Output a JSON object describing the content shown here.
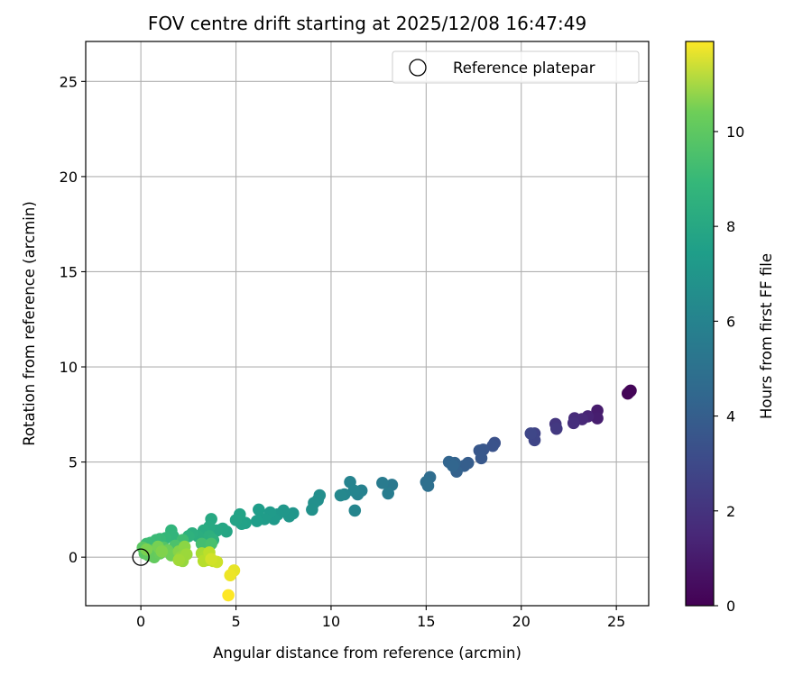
{
  "chart_data": {
    "type": "scatter",
    "title": "FOV centre drift starting at 2025/12/08 16:47:49",
    "xlabel": "Angular distance from reference (arcmin)",
    "ylabel": "Rotation from reference (arcmin)",
    "xlim": [
      -2.9,
      26.7
    ],
    "ylim": [
      -2.55,
      27.1
    ],
    "xticks": [
      0,
      5,
      10,
      15,
      20,
      25
    ],
    "yticks": [
      0,
      5,
      10,
      15,
      20,
      25
    ],
    "grid": true,
    "legend": {
      "placement": "top-right",
      "entries": [
        "Reference platepar"
      ]
    },
    "colorbar": {
      "label": "Hours from first FF file",
      "colormap": "viridis",
      "range": [
        0,
        11.9
      ],
      "ticks": [
        0,
        2,
        4,
        6,
        8,
        10
      ]
    },
    "reference_point": {
      "x": 0,
      "y": 0,
      "label": "Reference platepar"
    },
    "series": [
      {
        "points": [
          {
            "x": 25.7,
            "y": 8.7,
            "t": 0.0
          },
          {
            "x": 25.6,
            "y": 8.6,
            "t": 0.1
          },
          {
            "x": 25.75,
            "y": 8.75,
            "t": 0.15
          },
          {
            "x": 24.0,
            "y": 7.7,
            "t": 0.9
          },
          {
            "x": 24.0,
            "y": 7.3,
            "t": 1.0
          },
          {
            "x": 23.5,
            "y": 7.4,
            "t": 1.2
          },
          {
            "x": 23.2,
            "y": 7.25,
            "t": 1.35
          },
          {
            "x": 22.8,
            "y": 7.3,
            "t": 1.5
          },
          {
            "x": 22.75,
            "y": 7.05,
            "t": 1.6
          },
          {
            "x": 21.8,
            "y": 7.0,
            "t": 1.9
          },
          {
            "x": 21.85,
            "y": 6.75,
            "t": 2.0
          },
          {
            "x": 20.7,
            "y": 6.5,
            "t": 2.4
          },
          {
            "x": 20.7,
            "y": 6.15,
            "t": 2.5
          },
          {
            "x": 20.5,
            "y": 6.5,
            "t": 2.55
          },
          {
            "x": 18.6,
            "y": 6.0,
            "t": 3.0
          },
          {
            "x": 18.5,
            "y": 5.85,
            "t": 3.05
          },
          {
            "x": 18.0,
            "y": 5.65,
            "t": 3.2
          },
          {
            "x": 17.8,
            "y": 5.6,
            "t": 3.25
          },
          {
            "x": 17.9,
            "y": 5.2,
            "t": 3.3
          },
          {
            "x": 17.2,
            "y": 4.95,
            "t": 3.5
          },
          {
            "x": 17.0,
            "y": 4.8,
            "t": 3.55
          },
          {
            "x": 16.6,
            "y": 4.5,
            "t": 3.7
          },
          {
            "x": 16.5,
            "y": 4.95,
            "t": 3.75
          },
          {
            "x": 16.2,
            "y": 5.0,
            "t": 3.85
          },
          {
            "x": 16.4,
            "y": 4.8,
            "t": 3.9
          },
          {
            "x": 15.2,
            "y": 4.2,
            "t": 4.2
          },
          {
            "x": 15.0,
            "y": 3.95,
            "t": 4.3
          },
          {
            "x": 15.1,
            "y": 3.75,
            "t": 4.35
          },
          {
            "x": 13.2,
            "y": 3.8,
            "t": 4.8
          },
          {
            "x": 12.7,
            "y": 3.9,
            "t": 4.95
          },
          {
            "x": 13.0,
            "y": 3.35,
            "t": 5.0
          },
          {
            "x": 11.6,
            "y": 3.5,
            "t": 5.25
          },
          {
            "x": 11.4,
            "y": 3.3,
            "t": 5.3
          },
          {
            "x": 11.0,
            "y": 3.95,
            "t": 5.35
          },
          {
            "x": 11.2,
            "y": 3.5,
            "t": 5.4
          },
          {
            "x": 11.25,
            "y": 2.45,
            "t": 5.45
          },
          {
            "x": 10.7,
            "y": 3.3,
            "t": 5.5
          },
          {
            "x": 10.5,
            "y": 3.25,
            "t": 5.55
          },
          {
            "x": 9.4,
            "y": 3.25,
            "t": 5.85
          },
          {
            "x": 9.3,
            "y": 3.0,
            "t": 5.9
          },
          {
            "x": 9.1,
            "y": 2.85,
            "t": 5.95
          },
          {
            "x": 9.0,
            "y": 2.5,
            "t": 6.0
          },
          {
            "x": 8.0,
            "y": 2.3,
            "t": 6.2
          },
          {
            "x": 7.8,
            "y": 2.15,
            "t": 6.25
          },
          {
            "x": 7.5,
            "y": 2.45,
            "t": 6.3
          },
          {
            "x": 7.2,
            "y": 2.25,
            "t": 6.35
          },
          {
            "x": 7.0,
            "y": 2.0,
            "t": 6.4
          },
          {
            "x": 6.8,
            "y": 2.35,
            "t": 6.45
          },
          {
            "x": 6.5,
            "y": 2.0,
            "t": 6.5
          },
          {
            "x": 6.2,
            "y": 2.5,
            "t": 6.55
          },
          {
            "x": 6.1,
            "y": 1.9,
            "t": 6.6
          },
          {
            "x": 5.5,
            "y": 1.8,
            "t": 6.75
          },
          {
            "x": 5.3,
            "y": 1.75,
            "t": 6.8
          },
          {
            "x": 5.2,
            "y": 2.25,
            "t": 6.85
          },
          {
            "x": 5.0,
            "y": 1.95,
            "t": 6.9
          },
          {
            "x": 4.5,
            "y": 1.35,
            "t": 7.0
          },
          {
            "x": 4.3,
            "y": 1.5,
            "t": 7.05
          },
          {
            "x": 4.0,
            "y": 1.4,
            "t": 7.1
          },
          {
            "x": 3.7,
            "y": 2.0,
            "t": 7.15
          },
          {
            "x": 3.6,
            "y": 1.6,
            "t": 7.2
          },
          {
            "x": 3.3,
            "y": 1.4,
            "t": 7.3
          },
          {
            "x": 3.0,
            "y": 1.1,
            "t": 7.4
          },
          {
            "x": 2.7,
            "y": 1.25,
            "t": 7.45
          },
          {
            "x": 3.6,
            "y": 1.1,
            "t": 7.5
          },
          {
            "x": 3.8,
            "y": 0.9,
            "t": 7.55
          },
          {
            "x": 2.5,
            "y": 1.1,
            "t": 7.6
          },
          {
            "x": 1.6,
            "y": 1.4,
            "t": 7.75
          },
          {
            "x": 1.7,
            "y": 1.1,
            "t": 7.8
          },
          {
            "x": 1.3,
            "y": 1.0,
            "t": 7.9
          },
          {
            "x": 1.0,
            "y": 0.95,
            "t": 8.0
          },
          {
            "x": 0.8,
            "y": 0.9,
            "t": 8.05
          },
          {
            "x": 0.5,
            "y": 0.75,
            "t": 8.1
          },
          {
            "x": 0.3,
            "y": 0.7,
            "t": 8.15
          },
          {
            "x": 2.2,
            "y": 0.9,
            "t": 8.2
          },
          {
            "x": 3.2,
            "y": 0.7,
            "t": 8.3
          },
          {
            "x": 3.7,
            "y": 0.7,
            "t": 8.4
          },
          {
            "x": 1.8,
            "y": 0.6,
            "t": 8.5
          },
          {
            "x": 1.2,
            "y": 0.5,
            "t": 8.6
          },
          {
            "x": 0.6,
            "y": 0.35,
            "t": 8.7
          },
          {
            "x": 0.2,
            "y": 0.2,
            "t": 8.8
          },
          {
            "x": 0.1,
            "y": 0.5,
            "t": 8.85
          },
          {
            "x": 0.4,
            "y": 0.1,
            "t": 8.9
          },
          {
            "x": 0.7,
            "y": 0.0,
            "t": 9.0
          },
          {
            "x": 1.0,
            "y": 0.2,
            "t": 9.1
          },
          {
            "x": 1.4,
            "y": 0.35,
            "t": 9.2
          },
          {
            "x": 1.6,
            "y": 0.1,
            "t": 9.3
          },
          {
            "x": 0.9,
            "y": 0.55,
            "t": 9.4
          },
          {
            "x": 0.3,
            "y": 0.4,
            "t": 9.5
          },
          {
            "x": 1.1,
            "y": 0.3,
            "t": 9.6
          },
          {
            "x": 2.0,
            "y": 0.3,
            "t": 9.7
          },
          {
            "x": 2.3,
            "y": 0.55,
            "t": 9.8
          },
          {
            "x": 2.1,
            "y": 0.0,
            "t": 9.9
          },
          {
            "x": 2.2,
            "y": -0.2,
            "t": 10.0
          },
          {
            "x": 2.4,
            "y": 0.15,
            "t": 10.1
          },
          {
            "x": 2.0,
            "y": -0.15,
            "t": 10.2
          },
          {
            "x": 3.2,
            "y": 0.2,
            "t": 10.3
          },
          {
            "x": 3.4,
            "y": 0.05,
            "t": 10.4
          },
          {
            "x": 3.5,
            "y": -0.15,
            "t": 10.5
          },
          {
            "x": 3.3,
            "y": -0.2,
            "t": 10.6
          },
          {
            "x": 3.6,
            "y": 0.25,
            "t": 10.7
          },
          {
            "x": 3.8,
            "y": -0.2,
            "t": 10.8
          },
          {
            "x": 4.0,
            "y": -0.25,
            "t": 11.0
          },
          {
            "x": 3.7,
            "y": -0.1,
            "t": 11.1
          },
          {
            "x": 4.9,
            "y": -0.7,
            "t": 11.5
          },
          {
            "x": 4.7,
            "y": -0.95,
            "t": 11.6
          },
          {
            "x": 4.6,
            "y": -2.0,
            "t": 11.9
          }
        ]
      }
    ]
  }
}
